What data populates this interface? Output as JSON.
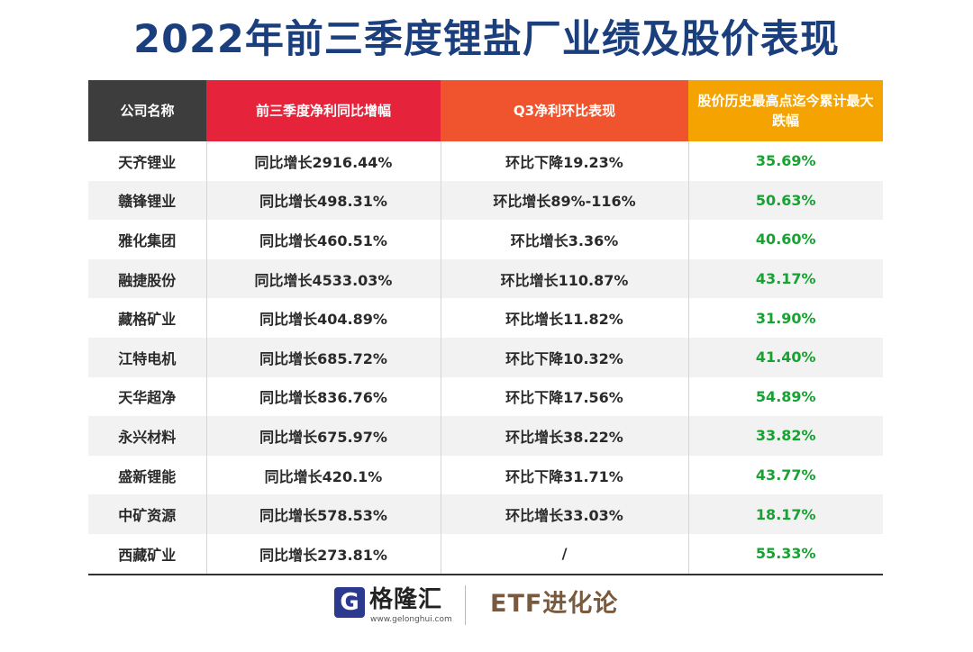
{
  "title": "2022年前三季度锂盐厂业绩及股价表现",
  "table": {
    "headers": [
      "公司名称",
      "前三季度净利同比增幅",
      "Q3净利环比表现",
      "股价历史最高点迄今累计最大跌幅"
    ],
    "rows": [
      [
        "天齐锂业",
        "同比增长2916.44%",
        "环比下降19.23%",
        "35.69%"
      ],
      [
        "赣锋锂业",
        "同比增长498.31%",
        "环比增长89%-116%",
        "50.63%"
      ],
      [
        "雅化集团",
        "同比增长460.51%",
        "环比增长3.36%",
        "40.60%"
      ],
      [
        "融捷股份",
        "同比增长4533.03%",
        "环比增长110.87%",
        "43.17%"
      ],
      [
        "藏格矿业",
        "同比增长404.89%",
        "环比增长11.82%",
        "31.90%"
      ],
      [
        "江特电机",
        "同比增长685.72%",
        "环比下降10.32%",
        "41.40%"
      ],
      [
        "天华超净",
        "同比增长836.76%",
        "环比下降17.56%",
        "54.89%"
      ],
      [
        "永兴材料",
        "同比增长675.97%",
        "环比增长38.22%",
        "33.82%"
      ],
      [
        "盛新锂能",
        "同比增长420.1%",
        "环比下降31.71%",
        "43.77%"
      ],
      [
        "中矿资源",
        "同比增长578.53%",
        "环比增长33.03%",
        "18.17%"
      ],
      [
        "西藏矿业",
        "同比增长273.81%",
        "/",
        "55.33%"
      ]
    ]
  },
  "footer": {
    "logo_mark": "G",
    "logo_name": "格隆汇",
    "logo_url": "www.gelonghui.com",
    "brand": "ETF进化论"
  },
  "colors": {
    "title": "#1b3f7d",
    "header_company": "#3d3d3d",
    "header_yoy": "#e5243b",
    "header_q3": "#f0542e",
    "header_drop": "#f5a300",
    "drop_value": "#16a331"
  }
}
